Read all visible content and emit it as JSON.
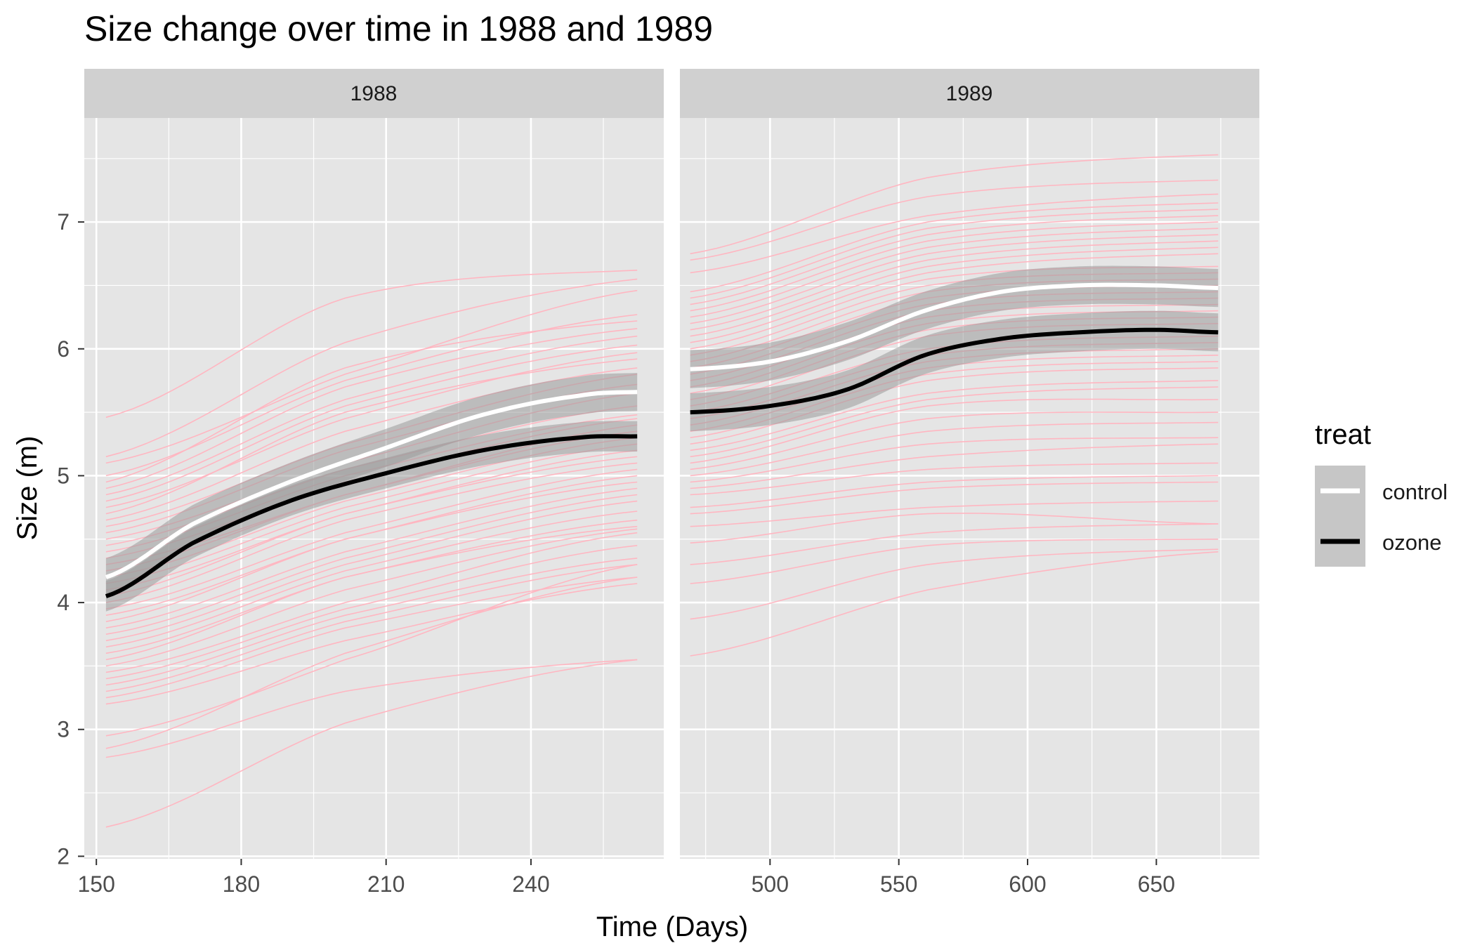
{
  "title": "Size change over time in 1988 and 1989",
  "colors": {
    "panel_bg": "#e5e5e5",
    "strip_bg": "#d0d0d0",
    "grid": "#ffffff",
    "tree_lines": "#ffb6c1",
    "ribbon": "#9a9a9a",
    "control": "#ffffff",
    "ozone": "#000000",
    "text": "#1a1a1a",
    "tick_text": "#4d4d4d"
  },
  "legend": {
    "title": "treat",
    "items": [
      {
        "label": "control",
        "color": "#ffffff"
      },
      {
        "label": "ozone",
        "color": "#000000"
      }
    ]
  },
  "chart_data": {
    "type": "line",
    "title": "Size change over time in 1988 and 1989",
    "xlabel": "Time (Days)",
    "ylabel": "Size (m)",
    "ylim": [
      1.98,
      7.82
    ],
    "y_ticks": [
      2,
      3,
      4,
      5,
      6,
      7
    ],
    "grid": true,
    "legend_position": "right",
    "facets": [
      {
        "label": "1988",
        "xlim": [
          147.5,
          267.5
        ],
        "x_ticks": [
          150,
          180,
          210,
          240
        ],
        "x_range": [
          152,
          262
        ],
        "series": [
          {
            "name": "control",
            "x": [
              152,
              170,
              190,
              210,
              230,
              250,
              262
            ],
            "y": [
              4.2,
              4.62,
              4.95,
              5.22,
              5.48,
              5.63,
              5.66
            ],
            "band": 0.15
          },
          {
            "name": "ozone",
            "x": [
              152,
              170,
              190,
              210,
              230,
              250,
              262
            ],
            "y": [
              4.05,
              4.47,
              4.8,
              5.02,
              5.2,
              5.3,
              5.31
            ],
            "band": 0.12
          }
        ],
        "individual_trees": [
          [
            5.46,
            6.4,
            6.62
          ],
          [
            5.15,
            6.05,
            6.55
          ],
          [
            5.1,
            5.8,
            6.46
          ],
          [
            5.0,
            5.75,
            6.27
          ],
          [
            4.95,
            5.85,
            6.22
          ],
          [
            4.9,
            5.7,
            6.16
          ],
          [
            4.85,
            5.6,
            6.1
          ],
          [
            4.8,
            5.55,
            6.03
          ],
          [
            4.75,
            5.45,
            5.97
          ],
          [
            4.7,
            5.5,
            5.92
          ],
          [
            4.65,
            5.35,
            5.85
          ],
          [
            4.6,
            5.25,
            5.8
          ],
          [
            4.55,
            5.2,
            5.72
          ],
          [
            4.5,
            5.1,
            5.65
          ],
          [
            4.45,
            5.05,
            5.55
          ],
          [
            4.4,
            5.0,
            5.48
          ],
          [
            4.35,
            4.95,
            5.45
          ],
          [
            4.3,
            4.85,
            5.4
          ],
          [
            4.25,
            4.85,
            5.35
          ],
          [
            4.2,
            4.8,
            5.3
          ],
          [
            4.15,
            4.75,
            5.25
          ],
          [
            4.1,
            4.7,
            5.2
          ],
          [
            4.05,
            4.7,
            5.15
          ],
          [
            4.0,
            4.65,
            5.1
          ],
          [
            3.95,
            4.55,
            5.05
          ],
          [
            3.9,
            4.5,
            5.0
          ],
          [
            3.85,
            4.5,
            4.95
          ],
          [
            3.8,
            4.4,
            4.9
          ],
          [
            3.75,
            4.35,
            4.85
          ],
          [
            3.7,
            4.3,
            4.8
          ],
          [
            3.65,
            4.25,
            4.72
          ],
          [
            3.6,
            4.2,
            4.65
          ],
          [
            3.55,
            4.2,
            4.6
          ],
          [
            3.5,
            4.1,
            4.58
          ],
          [
            3.45,
            4.0,
            4.55
          ],
          [
            3.4,
            3.95,
            4.45
          ],
          [
            3.35,
            3.9,
            4.35
          ],
          [
            3.3,
            3.85,
            4.3
          ],
          [
            3.25,
            3.8,
            4.2
          ],
          [
            3.2,
            3.7,
            4.15
          ],
          [
            2.95,
            3.55,
            4.3
          ],
          [
            2.85,
            3.6,
            4.2
          ],
          [
            2.78,
            3.3,
            3.55
          ],
          [
            2.23,
            3.05,
            3.55
          ]
        ]
      },
      {
        "label": "1989",
        "xlim": [
          465,
          690
        ],
        "x_ticks": [
          500,
          550,
          600,
          650
        ],
        "x_range": [
          469,
          674
        ],
        "series": [
          {
            "name": "control",
            "x": [
              469,
              500,
              530,
              560,
              590,
              620,
              650,
              674
            ],
            "y": [
              5.84,
              5.9,
              6.06,
              6.3,
              6.45,
              6.5,
              6.5,
              6.48
            ],
            "band": 0.15
          },
          {
            "name": "ozone",
            "x": [
              469,
              500,
              530,
              560,
              590,
              620,
              650,
              674
            ],
            "y": [
              5.5,
              5.55,
              5.68,
              5.95,
              6.08,
              6.13,
              6.15,
              6.13
            ],
            "band": 0.15
          }
        ],
        "individual_trees": [
          [
            6.75,
            7.35,
            7.53
          ],
          [
            6.7,
            7.2,
            7.33
          ],
          [
            6.6,
            7.05,
            7.22
          ],
          [
            6.45,
            7.0,
            7.15
          ],
          [
            6.4,
            6.95,
            7.1
          ],
          [
            6.35,
            6.9,
            7.05
          ],
          [
            6.3,
            6.85,
            7.0
          ],
          [
            6.25,
            6.8,
            6.95
          ],
          [
            6.2,
            6.75,
            6.9
          ],
          [
            6.15,
            6.7,
            6.85
          ],
          [
            6.1,
            6.65,
            6.8
          ],
          [
            6.05,
            6.6,
            6.75
          ],
          [
            6.0,
            6.55,
            6.65
          ],
          [
            5.95,
            6.5,
            6.6
          ],
          [
            5.9,
            6.45,
            6.55
          ],
          [
            5.85,
            6.4,
            6.5
          ],
          [
            5.8,
            6.35,
            6.45
          ],
          [
            5.75,
            6.3,
            6.4
          ],
          [
            5.7,
            6.25,
            6.35
          ],
          [
            5.65,
            6.2,
            6.3
          ],
          [
            5.6,
            6.15,
            6.25
          ],
          [
            5.55,
            6.1,
            6.2
          ],
          [
            5.5,
            6.0,
            6.1
          ],
          [
            5.45,
            5.95,
            6.05
          ],
          [
            5.4,
            5.9,
            6.0
          ],
          [
            5.35,
            5.85,
            5.95
          ],
          [
            5.3,
            5.8,
            5.9
          ],
          [
            5.25,
            5.75,
            5.85
          ],
          [
            5.2,
            5.65,
            5.75
          ],
          [
            5.15,
            5.6,
            5.7
          ],
          [
            5.1,
            5.55,
            5.6
          ],
          [
            5.05,
            5.45,
            5.5
          ],
          [
            5.0,
            5.35,
            5.42
          ],
          [
            4.95,
            5.25,
            5.3
          ],
          [
            4.9,
            5.15,
            5.25
          ],
          [
            4.85,
            5.05,
            5.1
          ],
          [
            4.75,
            4.95,
            5.0
          ],
          [
            4.7,
            4.9,
            4.95
          ],
          [
            4.6,
            4.75,
            4.8
          ],
          [
            4.47,
            4.7,
            4.62
          ],
          [
            4.3,
            4.55,
            4.62
          ],
          [
            4.15,
            4.45,
            4.5
          ],
          [
            3.87,
            4.3,
            4.42
          ],
          [
            3.58,
            4.1,
            4.4
          ]
        ]
      }
    ]
  }
}
